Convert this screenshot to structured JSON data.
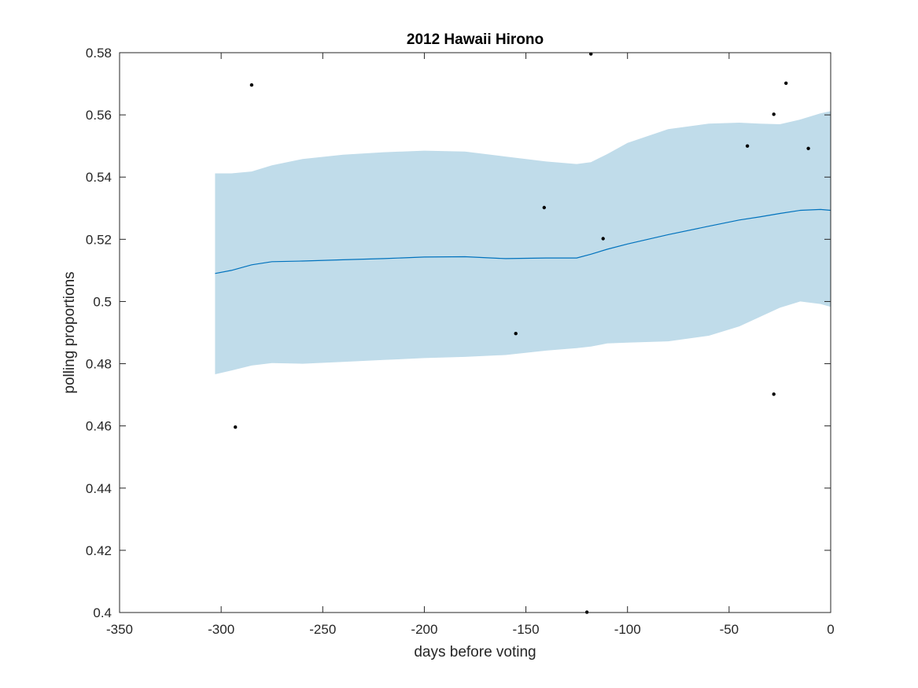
{
  "chart_data": {
    "type": "line",
    "title": "2012 Hawaii Hirono",
    "xlabel": "days before voting",
    "ylabel": "polling proportions",
    "xlim": [
      -350,
      0
    ],
    "ylim": [
      0.4,
      0.58
    ],
    "xticks": [
      -350,
      -300,
      -250,
      -200,
      -150,
      -100,
      -50,
      0
    ],
    "xtick_labels": [
      "-350",
      "-300",
      "-250",
      "-200",
      "-150",
      "-100",
      "-50",
      "0"
    ],
    "yticks": [
      0.4,
      0.42,
      0.44,
      0.46,
      0.48,
      0.5,
      0.52,
      0.54,
      0.56,
      0.58
    ],
    "ytick_labels": [
      "0.4",
      "0.42",
      "0.44",
      "0.46",
      "0.48",
      "0.5",
      "0.52",
      "0.54",
      "0.56",
      "0.58"
    ],
    "grid": false,
    "colors": {
      "band": "#c0dcea",
      "line": "#0072bd",
      "points": "#000000",
      "axes": "#262626"
    },
    "band": {
      "x": [
        -303,
        -295,
        -285,
        -275,
        -260,
        -240,
        -220,
        -200,
        -180,
        -160,
        -140,
        -125,
        -118,
        -110,
        -100,
        -80,
        -60,
        -45,
        -35,
        -25,
        -15,
        -5,
        0
      ],
      "upper": [
        0.5412,
        0.5412,
        0.5418,
        0.5438,
        0.5458,
        0.5472,
        0.548,
        0.5485,
        0.5482,
        0.5466,
        0.545,
        0.5442,
        0.5448,
        0.5474,
        0.551,
        0.5554,
        0.5572,
        0.5575,
        0.5572,
        0.557,
        0.5585,
        0.5605,
        0.5612
      ],
      "lower": [
        0.4766,
        0.4778,
        0.4794,
        0.4802,
        0.48,
        0.4806,
        0.4812,
        0.4818,
        0.4822,
        0.4828,
        0.4842,
        0.485,
        0.4855,
        0.4865,
        0.4868,
        0.4872,
        0.489,
        0.492,
        0.495,
        0.498,
        0.5,
        0.4992,
        0.4983
      ]
    },
    "series": [
      {
        "x": [
          -303,
          -295,
          -285,
          -275,
          -260,
          -240,
          -220,
          -200,
          -180,
          -160,
          -140,
          -125,
          -118,
          -110,
          -100,
          -80,
          -60,
          -45,
          -35,
          -25,
          -15,
          -5,
          0
        ],
        "values": [
          0.509,
          0.51,
          0.5118,
          0.5128,
          0.513,
          0.5134,
          0.5138,
          0.5143,
          0.5144,
          0.5138,
          0.514,
          0.514,
          0.5152,
          0.5168,
          0.5185,
          0.5215,
          0.5242,
          0.5262,
          0.5272,
          0.5283,
          0.5293,
          0.5296,
          0.5293
        ]
      }
    ],
    "points": {
      "x": [
        -293,
        -285,
        -155,
        -141,
        -120,
        -118,
        -112,
        -41,
        -28,
        -28,
        -22,
        -11
      ],
      "y": [
        0.4596,
        0.5696,
        0.4897,
        0.5302,
        0.4001,
        0.5796,
        0.5202,
        0.55,
        0.5602,
        0.4702,
        0.5702,
        0.5492
      ]
    }
  }
}
